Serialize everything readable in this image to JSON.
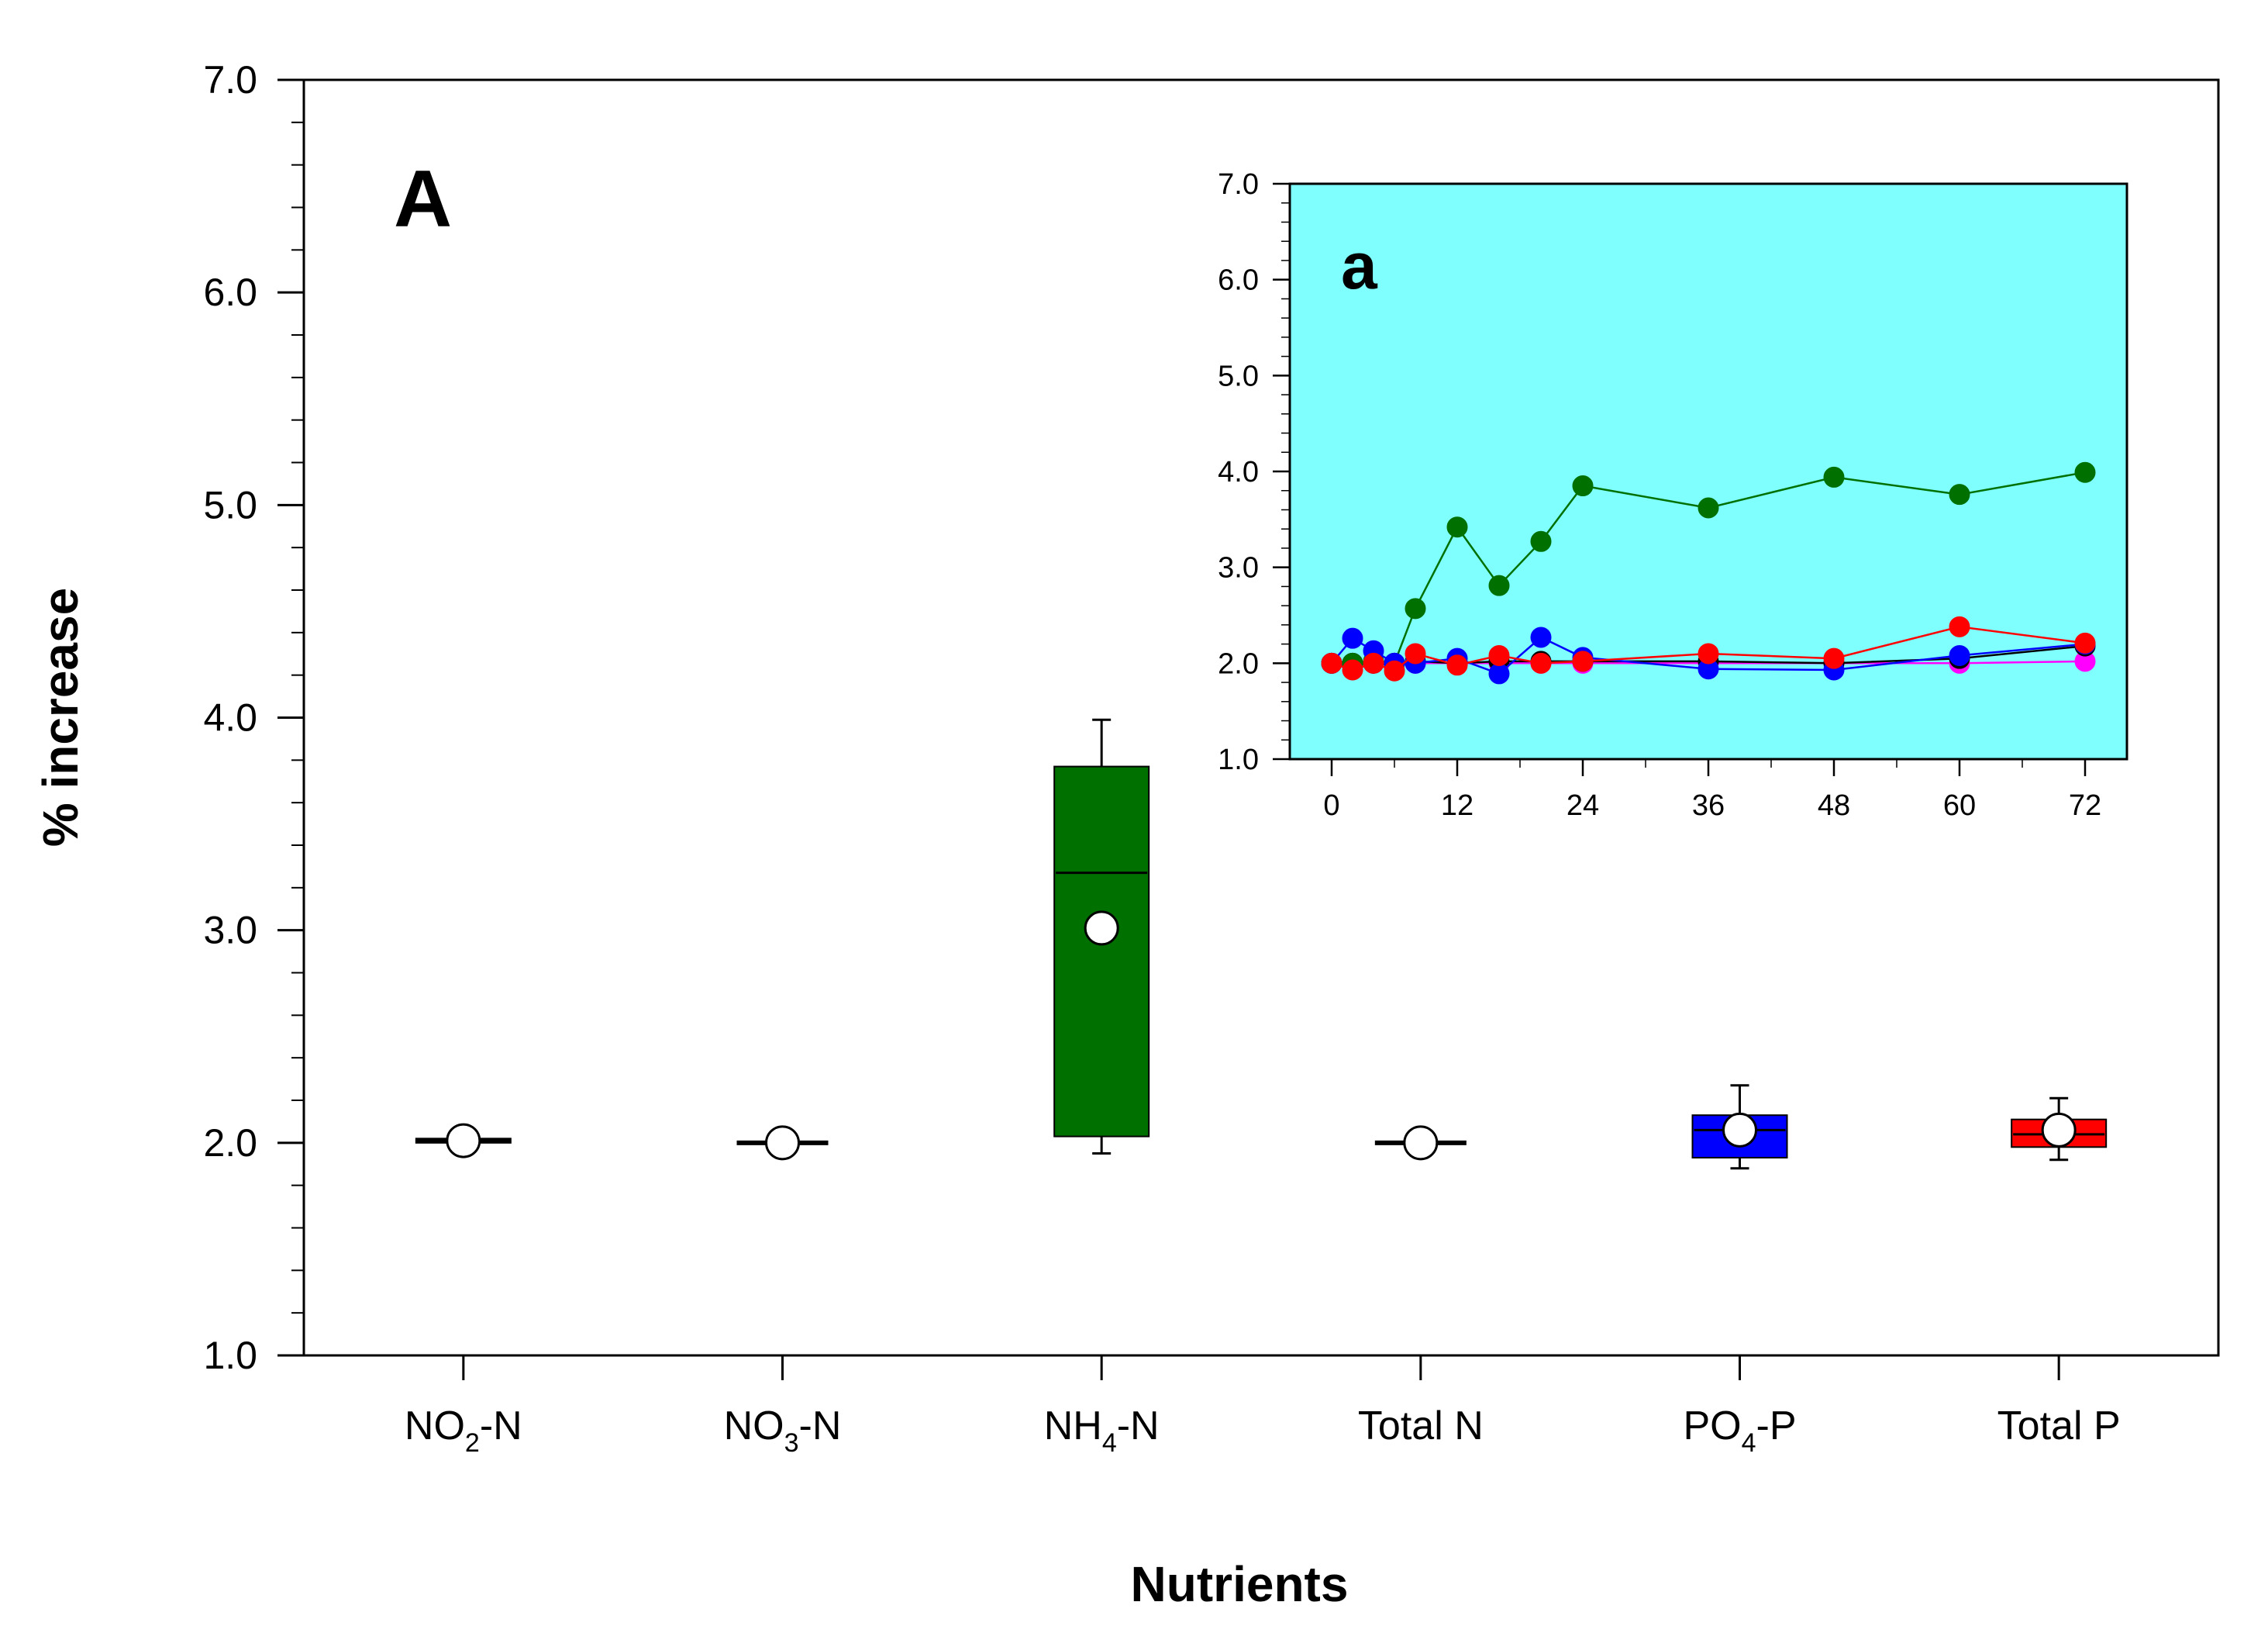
{
  "chart_data": [
    {
      "type": "box",
      "panel_label": "A",
      "xlabel": "Nutrients",
      "ylabel": "% increase",
      "ylim": [
        1.0,
        7.0
      ],
      "yticks": [
        "1.0",
        "2.0",
        "3.0",
        "4.0",
        "5.0",
        "6.0",
        "7.0"
      ],
      "categories": [
        {
          "label": "NO",
          "sub": "2",
          "suffix": "-N",
          "color": "#000000",
          "whisker_low": 2.0,
          "q1": 2.0,
          "median": 2.01,
          "q3": 2.02,
          "whisker_high": 2.02,
          "mean": 2.01
        },
        {
          "label": "NO",
          "sub": "3",
          "suffix": "-N",
          "color": "#000000",
          "whisker_low": 2.0,
          "q1": 2.0,
          "median": 2.0,
          "q3": 2.0,
          "whisker_high": 2.0,
          "mean": 2.0
        },
        {
          "label": "NH",
          "sub": "4",
          "suffix": "-N",
          "color": "#007000",
          "whisker_low": 1.95,
          "q1": 2.03,
          "median": 3.27,
          "q3": 3.77,
          "whisker_high": 3.99,
          "mean": 3.01
        },
        {
          "label": "Total N",
          "sub": "",
          "suffix": "",
          "color": "#000000",
          "whisker_low": 2.0,
          "q1": 2.0,
          "median": 2.0,
          "q3": 2.0,
          "whisker_high": 2.0,
          "mean": 2.0
        },
        {
          "label": "PO",
          "sub": "4",
          "suffix": "-P",
          "color": "#0000ff",
          "whisker_low": 1.88,
          "q1": 1.93,
          "median": 2.06,
          "q3": 2.13,
          "whisker_high": 2.27,
          "mean": 2.06
        },
        {
          "label": "Total P",
          "sub": "",
          "suffix": "",
          "color": "#ff0000",
          "whisker_low": 1.92,
          "q1": 1.98,
          "median": 2.04,
          "q3": 2.11,
          "whisker_high": 2.21,
          "mean": 2.06
        }
      ]
    },
    {
      "type": "line",
      "panel_label": "a",
      "background": "#80ffff",
      "ylim": [
        1.0,
        7.0
      ],
      "xlim": [
        -4,
        76
      ],
      "yticks": [
        "1.0",
        "2.0",
        "3.0",
        "4.0",
        "5.0",
        "6.0",
        "7.0"
      ],
      "xticks": [
        "0",
        "12",
        "24",
        "36",
        "48",
        "60",
        "72"
      ],
      "series": [
        {
          "name": "Total N",
          "color": "#ff00ff",
          "x": [
            0,
            2,
            4,
            6,
            8,
            12,
            16,
            20,
            24,
            36,
            48,
            60,
            72
          ],
          "y": [
            2.0,
            2.0,
            2.0,
            2.0,
            2.0,
            2.0,
            2.0,
            2.0,
            2.0,
            2.0,
            2.0,
            2.0,
            2.02
          ]
        },
        {
          "name": "NO2-N",
          "color": "#000000",
          "x": [
            0,
            2,
            4,
            6,
            8,
            12,
            16,
            20,
            24,
            36,
            48,
            60,
            72
          ],
          "y": [
            2.0,
            2.0,
            2.0,
            2.0,
            2.02,
            2.0,
            2.02,
            2.02,
            2.02,
            2.02,
            2.0,
            2.05,
            2.18
          ]
        },
        {
          "name": "NH4-N",
          "color": "#007000",
          "x": [
            0,
            2,
            4,
            6,
            8,
            12,
            16,
            20,
            24,
            36,
            48,
            60,
            72
          ],
          "y": [
            2.0,
            2.0,
            2.02,
            2.0,
            2.57,
            3.42,
            2.81,
            3.27,
            3.85,
            3.62,
            3.94,
            3.76,
            3.99
          ]
        },
        {
          "name": "PO4-P",
          "color": "#0000ff",
          "x": [
            0,
            2,
            4,
            6,
            8,
            12,
            16,
            20,
            24,
            36,
            48,
            60,
            72
          ],
          "y": [
            2.0,
            2.26,
            2.13,
            2.0,
            2.0,
            2.05,
            1.89,
            2.27,
            2.06,
            1.94,
            1.93,
            2.08,
            2.2
          ]
        },
        {
          "name": "Total P",
          "color": "#ff0000",
          "x": [
            0,
            2,
            4,
            6,
            8,
            12,
            16,
            20,
            24,
            36,
            48,
            60,
            72
          ],
          "y": [
            2.0,
            1.93,
            2.0,
            1.92,
            2.1,
            1.98,
            2.08,
            2.0,
            2.02,
            2.1,
            2.05,
            2.38,
            2.21
          ]
        }
      ]
    }
  ]
}
